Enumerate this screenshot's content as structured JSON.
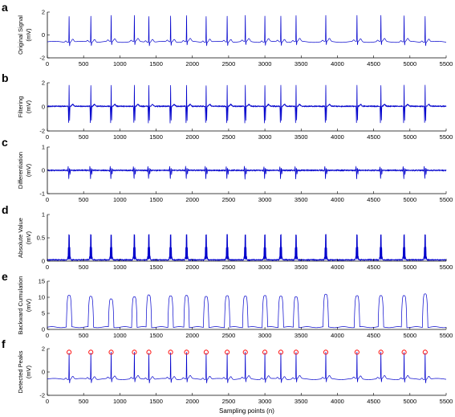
{
  "colors": {
    "signal": "#0000cc",
    "peak_marker": "#ff0000",
    "axis": "#000000"
  },
  "x_axis": {
    "label": "Sampling points (n)",
    "range": [
      0,
      5500
    ],
    "ticks": [
      "0",
      "500",
      "1000",
      "1500",
      "2000",
      "2500",
      "3000",
      "3500",
      "4000",
      "4500",
      "5000",
      "5500"
    ]
  },
  "chart_data": [
    {
      "panel": "a",
      "type": "line",
      "ylabel_lines": [
        "Original Signal",
        "(mV)"
      ],
      "xlim": [
        0,
        5500
      ],
      "ylim": [
        -2,
        2
      ],
      "yticks": [
        "-2",
        "0",
        "2"
      ],
      "signal": "ecg_raw",
      "r_peak_x": [
        300,
        600,
        880,
        1200,
        1400,
        1700,
        1920,
        2190,
        2480,
        2730,
        3000,
        3220,
        3430,
        3840,
        4270,
        4600,
        4920,
        5210
      ],
      "r_peak_value": 1.7,
      "baseline": -0.6,
      "s_wave_value": -0.9
    },
    {
      "panel": "b",
      "type": "line",
      "ylabel_lines": [
        "Filtering",
        "(mV)"
      ],
      "xlim": [
        0,
        5500
      ],
      "ylim": [
        -2,
        2
      ],
      "yticks": [
        "-2",
        "0",
        "2"
      ],
      "signal": "ecg_filtered",
      "r_peak_x": [
        300,
        600,
        880,
        1200,
        1400,
        1700,
        1920,
        2190,
        2480,
        2730,
        3000,
        3220,
        3430,
        3840,
        4270,
        4600,
        4920,
        5210
      ],
      "r_peak_value": 1.8,
      "q_wave_value": -1.4,
      "s_wave_value": -1.2,
      "baseline": 0.05
    },
    {
      "panel": "c",
      "type": "line",
      "ylabel_lines": [
        "Differentiation",
        "(mV)"
      ],
      "xlim": [
        0,
        5500
      ],
      "ylim": [
        -1,
        1
      ],
      "yticks": [
        "-1",
        "0",
        "1"
      ],
      "signal": "derivative",
      "r_peak_x": [
        300,
        600,
        880,
        1200,
        1400,
        1700,
        1920,
        2190,
        2480,
        2730,
        3000,
        3220,
        3430,
        3840,
        4270,
        4600,
        4920,
        5210
      ],
      "pos_peak_value": 0.4,
      "neg_peak_value": -0.5,
      "baseline": 0
    },
    {
      "panel": "d",
      "type": "line",
      "ylabel_lines": [
        "Absolute Value",
        "(mV)"
      ],
      "xlim": [
        0,
        5500
      ],
      "ylim": [
        0,
        1
      ],
      "yticks": [
        "0",
        "0.5",
        "1"
      ],
      "signal": "absolute_derivative",
      "r_peak_x": [
        300,
        600,
        880,
        1200,
        1400,
        1700,
        1920,
        2190,
        2480,
        2730,
        3000,
        3220,
        3430,
        3840,
        4270,
        4600,
        4920,
        5210
      ],
      "peak_value": 0.6,
      "baseline": 0.02
    },
    {
      "panel": "e",
      "type": "line",
      "ylabel_lines": [
        "Backward Cumulation",
        "(mV)"
      ],
      "xlim": [
        0,
        5500
      ],
      "ylim": [
        0,
        15
      ],
      "yticks": [
        "0",
        "5",
        "10",
        "15"
      ],
      "signal": "backward_cumulation",
      "r_peak_x": [
        300,
        600,
        880,
        1200,
        1400,
        1700,
        1920,
        2190,
        2480,
        2730,
        3000,
        3220,
        3430,
        3840,
        4270,
        4600,
        4920,
        5210
      ],
      "hump_values": [
        10.5,
        10.2,
        9.5,
        10.3,
        10.8,
        10.6,
        10.7,
        10.4,
        10.6,
        10.5,
        10.6,
        10.5,
        10.3,
        10.8,
        10.5,
        10.4,
        10.6,
        11.2
      ],
      "baseline": 0.7
    },
    {
      "panel": "f",
      "type": "line",
      "ylabel_lines": [
        "Detected Peaks",
        "(mV)"
      ],
      "xlim": [
        0,
        5500
      ],
      "ylim": [
        -2,
        2
      ],
      "yticks": [
        "-2",
        "0",
        "2"
      ],
      "signal": "ecg_raw",
      "r_peak_x": [
        300,
        600,
        880,
        1200,
        1400,
        1700,
        1920,
        2190,
        2480,
        2730,
        3000,
        3220,
        3430,
        3840,
        4270,
        4600,
        4920,
        5210
      ],
      "r_peak_value": 1.7,
      "baseline": -0.6,
      "s_wave_value": -0.9,
      "markers": "circle-at-r-peaks"
    }
  ]
}
